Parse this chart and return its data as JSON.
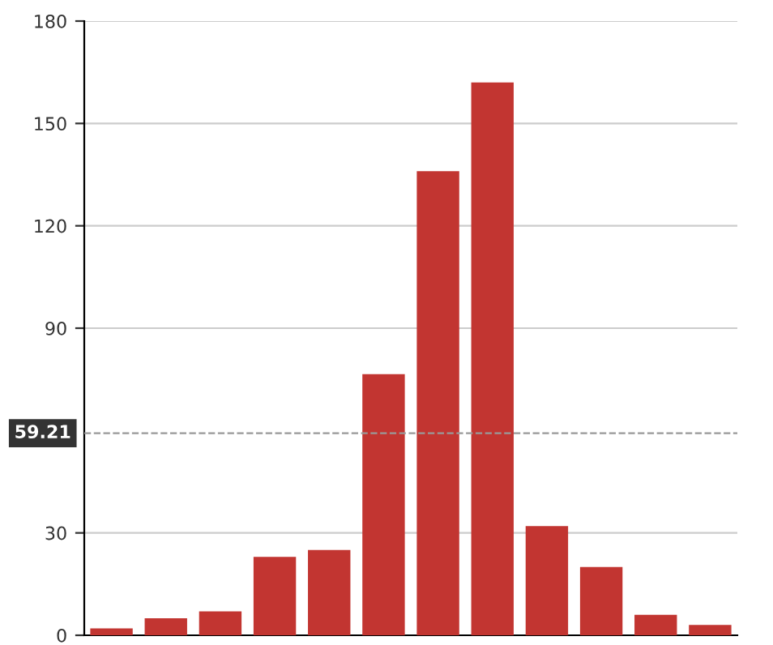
{
  "chart_data": {
    "type": "bar",
    "categories": [
      null,
      null,
      null,
      null,
      null,
      null,
      null,
      null,
      null,
      null,
      null,
      null
    ],
    "values": [
      2,
      5,
      7,
      23,
      25,
      76.5,
      136,
      162,
      32,
      20,
      6,
      3
    ],
    "color": "#c23531",
    "ylim": [
      0,
      180
    ],
    "yticks": [
      0,
      30,
      90,
      120,
      150,
      180
    ],
    "grid": "y",
    "tick_labels": "y",
    "ref_lines": [
      {
        "axis": "y",
        "value": 59.21,
        "label": "59.21",
        "color": "#999999",
        "line_style": "dashed"
      }
    ]
  }
}
